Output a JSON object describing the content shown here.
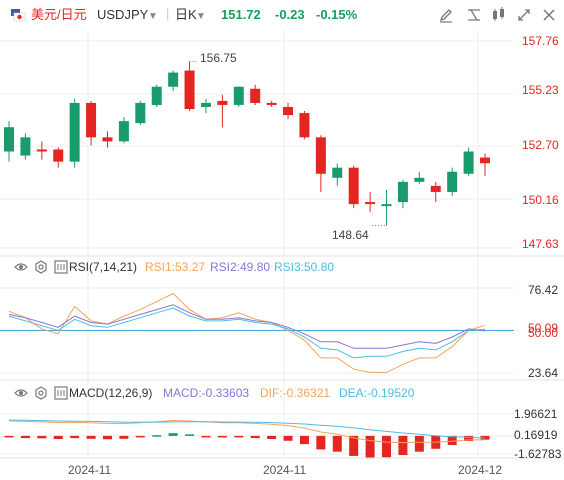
{
  "header": {
    "flag_icon": "us-jp-flag-icon",
    "pair_cn": "美元/日元",
    "symbol": "USDJPY",
    "dropdown_icon": "caret-down-icon",
    "period": "日K",
    "last": "151.72",
    "change": "-0.23",
    "change_pct": "-0.15%",
    "toolbar_icons": [
      "pencil-tools-icon",
      "indicator-icon",
      "layout-icon",
      "expand-icon",
      "close-icon"
    ]
  },
  "colors": {
    "up": "#1a9b6b",
    "down": "#e42521",
    "quote": "#16a05b",
    "axis_label": "#e42521",
    "rsi1": "#f6a35a",
    "rsi2": "#8a74d6",
    "rsi3": "#4cbfe0",
    "macd_line": "#f6a35a",
    "dea_line": "#4cbfe0",
    "grid": "#eeeeee",
    "level": "#4aa7e0"
  },
  "rsi": {
    "settings_icon": "gear-icon",
    "eye_icon": "eye-icon",
    "name": "RSI(7,14,21)",
    "rsi1": "RSI1:53.27",
    "rsi2": "RSI2:49.80",
    "rsi3": "RSI3:50.80",
    "axis": {
      "top": "76.42",
      "mid1": "50.09",
      "mid2": "50.00",
      "bottom": "23.64"
    }
  },
  "macd": {
    "settings_icon": "gear-icon",
    "eye_icon": "eye-icon",
    "name": "MACD(12,26,9)",
    "macd": "MACD:-0.33603",
    "dif": "DIF:-0.36321",
    "dea": "DEA:-0.19520",
    "axis": {
      "top": "1.96621",
      "mid": "0.16919",
      "bottom": "-1.62783"
    }
  },
  "price_axis": [
    "157.76",
    "155.23",
    "152.70",
    "150.16",
    "147.63"
  ],
  "annotations": {
    "high": "156.75",
    "low": "148.64"
  },
  "x_labels": [
    "2024-11",
    "2024-11",
    "2024-12"
  ],
  "chart_data": {
    "type": "candlestick",
    "title": "美元/日元 USDJPY 日K",
    "price_axis": {
      "ticks": [
        157.76,
        155.23,
        152.7,
        150.16,
        147.63
      ]
    },
    "high_label": 156.75,
    "low_label": 148.64,
    "candles": [
      {
        "o": 152.3,
        "h": 153.8,
        "l": 151.8,
        "c": 153.5
      },
      {
        "o": 152.1,
        "h": 153.2,
        "l": 151.9,
        "c": 153.0
      },
      {
        "o": 152.4,
        "h": 152.8,
        "l": 151.9,
        "c": 152.3
      },
      {
        "o": 152.4,
        "h": 152.5,
        "l": 151.5,
        "c": 151.8
      },
      {
        "o": 151.8,
        "h": 154.9,
        "l": 151.5,
        "c": 154.7
      },
      {
        "o": 154.7,
        "h": 154.8,
        "l": 152.6,
        "c": 153.0
      },
      {
        "o": 153.0,
        "h": 153.3,
        "l": 152.5,
        "c": 152.8
      },
      {
        "o": 152.8,
        "h": 154.0,
        "l": 152.7,
        "c": 153.8
      },
      {
        "o": 153.7,
        "h": 154.8,
        "l": 153.6,
        "c": 154.7
      },
      {
        "o": 154.6,
        "h": 155.6,
        "l": 154.5,
        "c": 155.5
      },
      {
        "o": 155.5,
        "h": 156.3,
        "l": 155.3,
        "c": 156.2
      },
      {
        "o": 156.3,
        "h": 156.75,
        "l": 154.3,
        "c": 154.4
      },
      {
        "o": 154.5,
        "h": 154.9,
        "l": 154.2,
        "c": 154.7
      },
      {
        "o": 154.8,
        "h": 155.1,
        "l": 153.5,
        "c": 154.6
      },
      {
        "o": 154.6,
        "h": 155.5,
        "l": 154.5,
        "c": 155.5
      },
      {
        "o": 155.4,
        "h": 155.6,
        "l": 154.6,
        "c": 154.7
      },
      {
        "o": 154.7,
        "h": 154.8,
        "l": 154.5,
        "c": 154.6
      },
      {
        "o": 154.5,
        "h": 154.7,
        "l": 153.9,
        "c": 154.1
      },
      {
        "o": 154.2,
        "h": 154.3,
        "l": 152.9,
        "c": 153.0
      },
      {
        "o": 153.0,
        "h": 153.1,
        "l": 150.3,
        "c": 151.2
      },
      {
        "o": 151.0,
        "h": 151.7,
        "l": 150.6,
        "c": 151.5
      },
      {
        "o": 151.5,
        "h": 151.6,
        "l": 149.5,
        "c": 149.7
      },
      {
        "o": 149.8,
        "h": 150.3,
        "l": 149.3,
        "c": 149.7
      },
      {
        "o": 149.6,
        "h": 150.4,
        "l": 148.64,
        "c": 149.7
      },
      {
        "o": 149.8,
        "h": 150.9,
        "l": 149.5,
        "c": 150.8
      },
      {
        "o": 150.8,
        "h": 151.3,
        "l": 150.7,
        "c": 151.0
      },
      {
        "o": 150.6,
        "h": 150.8,
        "l": 149.8,
        "c": 150.3
      },
      {
        "o": 150.3,
        "h": 151.5,
        "l": 150.1,
        "c": 151.3
      },
      {
        "o": 151.2,
        "h": 152.5,
        "l": 151.1,
        "c": 152.3
      },
      {
        "o": 152.0,
        "h": 152.2,
        "l": 151.1,
        "c": 151.72
      }
    ],
    "rsi_axis": {
      "ticks": [
        76.42,
        50.09,
        50.0,
        23.64
      ]
    },
    "rsi_series": [
      {
        "name": "RSI1",
        "values": [
          62,
          58,
          51,
          48,
          65,
          56,
          54,
          59,
          63,
          68,
          73,
          63,
          57,
          58,
          61,
          57,
          55,
          50,
          44,
          33,
          33,
          26,
          24,
          24,
          29,
          33,
          33,
          40,
          50,
          53.27
        ]
      },
      {
        "name": "RSI2",
        "values": [
          60,
          58,
          55,
          52,
          59,
          55,
          54,
          57,
          60,
          63,
          66,
          61,
          57,
          57,
          58,
          56,
          55,
          52,
          48,
          43,
          43,
          39,
          39,
          39,
          41,
          43,
          42,
          46,
          51,
          49.8
        ]
      },
      {
        "name": "RSI3",
        "values": [
          59,
          56,
          53,
          50,
          57,
          53,
          52,
          55,
          58,
          61,
          64,
          59,
          56,
          56,
          57,
          55,
          54,
          51,
          46,
          39,
          38,
          33,
          34,
          34,
          37,
          39,
          38,
          43,
          50,
          50.8
        ]
      }
    ],
    "macd_axis": {
      "ticks": [
        1.96621,
        0.16919,
        -1.62783
      ]
    },
    "macd_series": [
      {
        "name": "DIF",
        "values": [
          1.35,
          1.3,
          1.26,
          1.2,
          1.22,
          1.17,
          1.12,
          1.11,
          1.18,
          1.27,
          1.38,
          1.34,
          1.26,
          1.18,
          1.18,
          1.12,
          1.05,
          0.92,
          0.7,
          0.35,
          0.14,
          -0.18,
          -0.42,
          -0.56,
          -0.6,
          -0.57,
          -0.56,
          -0.48,
          -0.36,
          -0.36321
        ]
      },
      {
        "name": "DEA",
        "values": [
          1.42,
          1.4,
          1.37,
          1.34,
          1.32,
          1.3,
          1.27,
          1.24,
          1.23,
          1.24,
          1.26,
          1.27,
          1.27,
          1.25,
          1.24,
          1.22,
          1.19,
          1.14,
          1.07,
          0.96,
          0.85,
          0.72,
          0.55,
          0.4,
          0.26,
          0.14,
          0.02,
          -0.07,
          -0.13,
          -0.1952
        ]
      },
      {
        "name": "MACD",
        "values": [
          -0.14,
          -0.2,
          -0.22,
          -0.28,
          -0.2,
          -0.26,
          -0.3,
          -0.26,
          -0.1,
          0.06,
          0.24,
          0.14,
          -0.02,
          -0.14,
          -0.12,
          -0.2,
          -0.28,
          -0.44,
          -0.74,
          -1.22,
          -1.42,
          -1.8,
          -1.94,
          -1.92,
          -1.72,
          -1.42,
          -1.16,
          -0.82,
          -0.46,
          -0.33603
        ]
      }
    ],
    "x_labels": [
      "2024-11",
      "2024-11",
      "2024-12"
    ]
  }
}
